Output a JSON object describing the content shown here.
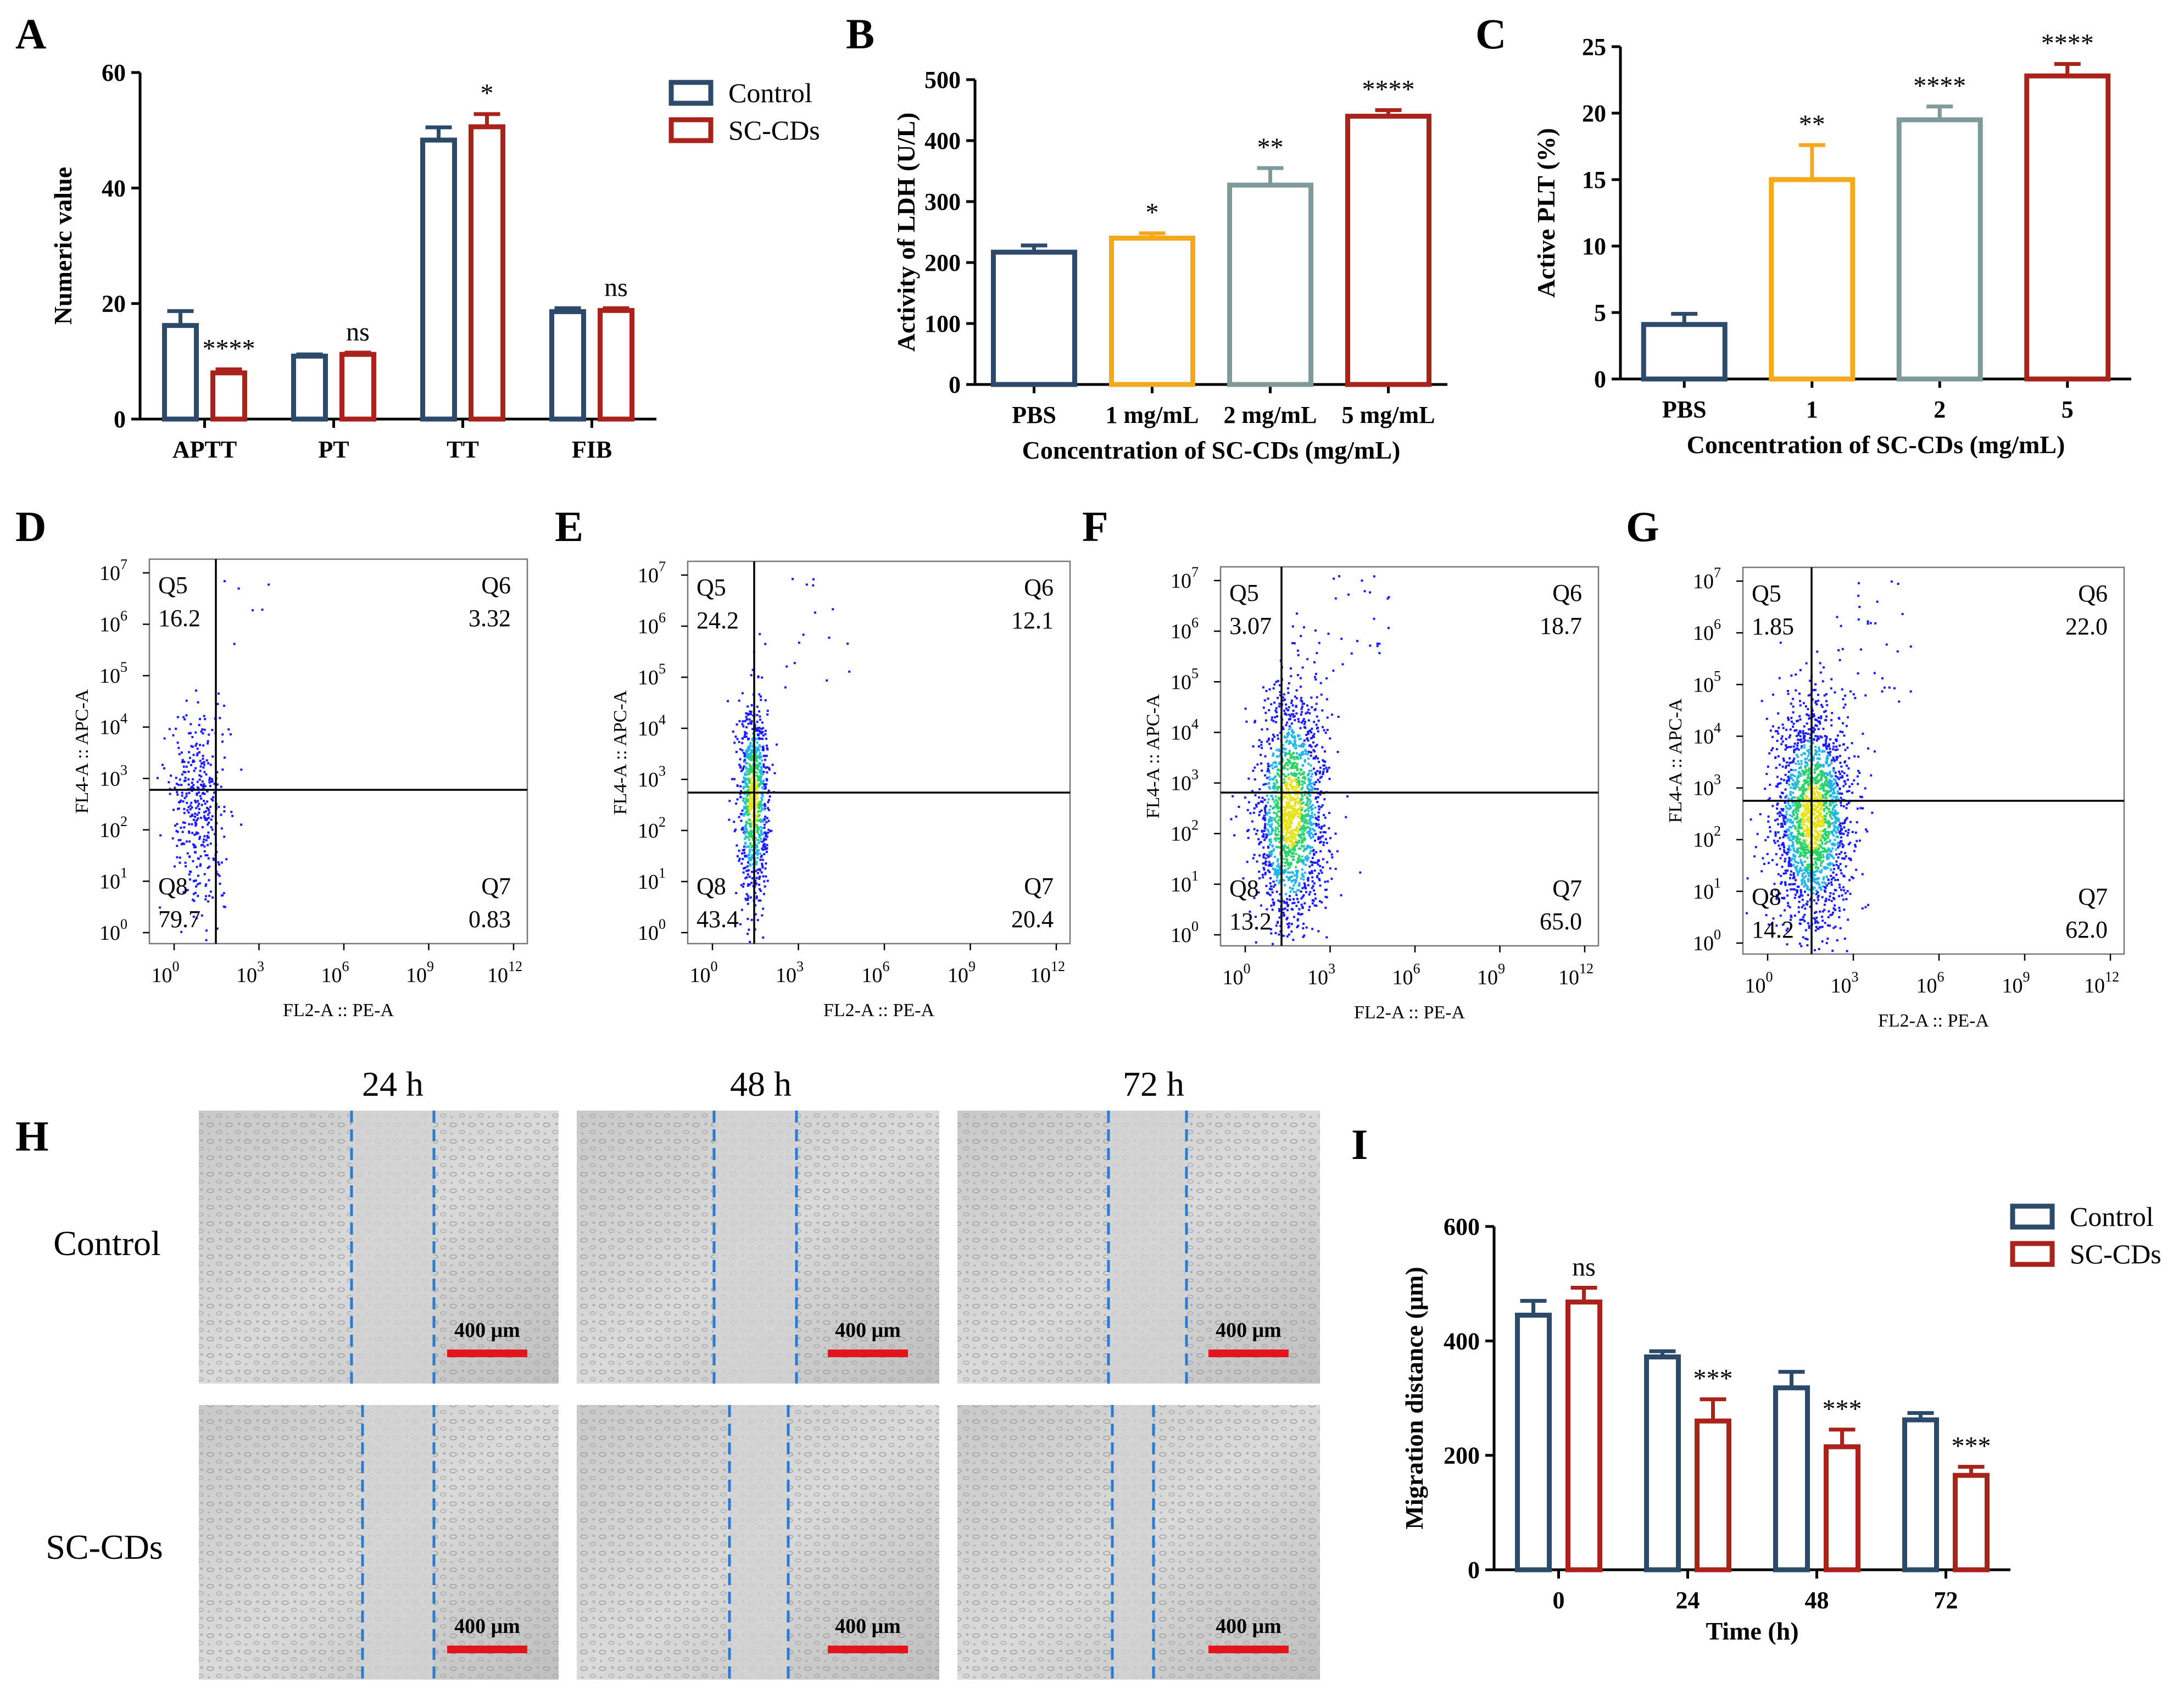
{
  "colors": {
    "control": "#2E4A6B",
    "sc_cds": "#A9231C",
    "orange": "#F4A81C",
    "grey": "#7F9A98",
    "dashed": "#2B7BD0",
    "scale_bar": "#E3141B"
  },
  "chart_data": [
    {
      "id": "A",
      "type": "bar",
      "categories": [
        "APTT",
        "PT",
        "TT",
        "FIB"
      ],
      "series": [
        {
          "name": "Control",
          "values": [
            16.2,
            10.9,
            48.3,
            18.6
          ],
          "errors": [
            2.5,
            0.3,
            2.2,
            0.6
          ]
        },
        {
          "name": "SC-CDs",
          "values": [
            8.0,
            11.2,
            50.6,
            18.8
          ],
          "errors": [
            0.6,
            0.3,
            2.2,
            0.4
          ]
        }
      ],
      "significance": [
        "****",
        "ns",
        "*",
        "ns"
      ],
      "title": "",
      "xlabel": "",
      "ylabel": "Numeric value",
      "ylim": [
        0,
        60
      ],
      "yticks": [
        "0",
        "20",
        "40",
        "60"
      ],
      "legend": [
        "Control",
        "SC-CDs"
      ],
      "legend_position": "top-right"
    },
    {
      "id": "B",
      "type": "bar",
      "categories": [
        "PBS",
        "1 mg/mL",
        "2 mg/mL",
        "5 mg/mL"
      ],
      "values": [
        217,
        240,
        327,
        440
      ],
      "errors": [
        11,
        8,
        28,
        10
      ],
      "significance": [
        "",
        "*",
        "**",
        "****"
      ],
      "title": "",
      "xlabel": "Concentration of SC-CDs (mg/mL)",
      "ylabel": "Activity of LDH (U/L)",
      "ylim": [
        0,
        500
      ],
      "yticks": [
        "0",
        "100",
        "200",
        "300",
        "400",
        "500"
      ]
    },
    {
      "id": "C",
      "type": "bar",
      "categories": [
        "PBS",
        "1",
        "2",
        "5"
      ],
      "values": [
        4.1,
        15.0,
        19.5,
        22.8
      ],
      "errors": [
        0.8,
        2.6,
        1.0,
        0.9
      ],
      "significance": [
        "",
        "**",
        "****",
        "****"
      ],
      "title": "",
      "xlabel": "Concentration of SC-CDs (mg/mL)",
      "ylabel": "Active PLT (%)",
      "ylim": [
        0,
        25
      ],
      "yticks": [
        "0",
        "5",
        "10",
        "15",
        "20",
        "25"
      ]
    },
    {
      "id": "I",
      "type": "bar",
      "categories": [
        "0",
        "24",
        "48",
        "72"
      ],
      "series": [
        {
          "name": "Control",
          "values": [
            445,
            372,
            318,
            262
          ],
          "errors": [
            25,
            10,
            28,
            12
          ]
        },
        {
          "name": "SC-CDs",
          "values": [
            468,
            260,
            215,
            165
          ],
          "errors": [
            25,
            38,
            30,
            15
          ]
        }
      ],
      "significance": [
        "ns",
        "***",
        "***",
        "***"
      ],
      "title": "",
      "xlabel": "Time (h)",
      "ylabel": "Migration distance (μm)",
      "ylim": [
        0,
        600
      ],
      "yticks": [
        "0",
        "200",
        "400",
        "600"
      ],
      "legend": [
        "Control",
        "SC-CDs"
      ],
      "legend_position": "top-right"
    }
  ],
  "flow_panels": [
    {
      "id": "D",
      "q5": "16.2",
      "q6": "3.32",
      "q7": "0.83",
      "q8": "79.7"
    },
    {
      "id": "E",
      "q5": "24.2",
      "q6": "12.1",
      "q7": "20.4",
      "q8": "43.4"
    },
    {
      "id": "F",
      "q5": "3.07",
      "q6": "18.7",
      "q7": "65.0",
      "q8": "13.2"
    },
    {
      "id": "G",
      "q5": "1.85",
      "q6": "22.0",
      "q7": "62.0",
      "q8": "14.2"
    }
  ],
  "flow_axes": {
    "x_title": "FL2-A :: PE-A",
    "y_title": "FL4-A :: APC-A",
    "x_ticks": [
      {
        "base": "10",
        "exp": "0"
      },
      {
        "base": "10",
        "exp": "3"
      },
      {
        "base": "10",
        "exp": "6"
      },
      {
        "base": "10",
        "exp": "9"
      },
      {
        "base": "10",
        "exp": "12"
      }
    ],
    "y_ticks": [
      {
        "base": "10",
        "exp": "0"
      },
      {
        "base": "10",
        "exp": "1"
      },
      {
        "base": "10",
        "exp": "2"
      },
      {
        "base": "10",
        "exp": "3"
      },
      {
        "base": "10",
        "exp": "4"
      },
      {
        "base": "10",
        "exp": "5"
      },
      {
        "base": "10",
        "exp": "6"
      },
      {
        "base": "10",
        "exp": "7"
      }
    ],
    "quadrant_names": [
      "Q5",
      "Q6",
      "Q7",
      "Q8"
    ]
  },
  "panel_H": {
    "times": [
      "24 h",
      "48 h",
      "72 h"
    ],
    "rows": [
      "Control",
      "SC-CDs"
    ],
    "scale_bar": "400 μm"
  }
}
